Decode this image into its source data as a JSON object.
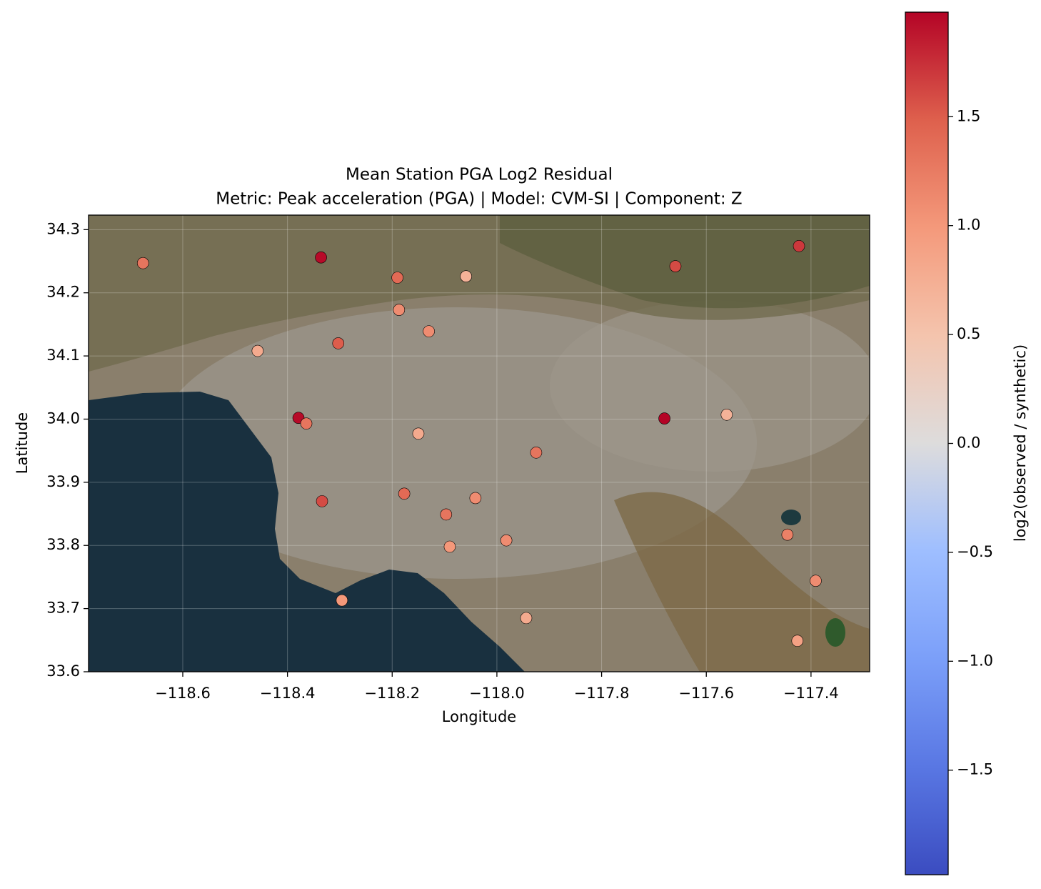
{
  "chart_data": {
    "type": "scatter",
    "title": "Mean Station PGA Log2 Residual",
    "subtitle": "Metric: Peak acceleration (PGA) | Model: CVM-SI | Component: Z",
    "x_label": "Longitude",
    "y_label": "Latitude",
    "x": [
      -118.676,
      -118.336,
      -118.19,
      -118.059,
      -117.659,
      -117.423,
      -118.187,
      -118.13,
      -118.303,
      -118.457,
      -118.379,
      -118.364,
      -118.15,
      -117.68,
      -117.561,
      -117.925,
      -118.334,
      -118.177,
      -118.041,
      -118.097,
      -117.982,
      -118.09,
      -117.445,
      -117.391,
      -118.296,
      -117.944,
      -117.426
    ],
    "y": [
      34.247,
      34.256,
      34.224,
      34.226,
      34.242,
      34.274,
      34.173,
      34.139,
      34.12,
      34.108,
      34.002,
      33.993,
      33.977,
      34.001,
      34.007,
      33.947,
      33.87,
      33.882,
      33.875,
      33.849,
      33.808,
      33.798,
      33.817,
      33.744,
      33.713,
      33.685,
      33.649
    ],
    "values": [
      1.3,
      1.95,
      1.4,
      0.7,
      1.6,
      1.7,
      1.1,
      1.1,
      1.5,
      0.8,
      1.95,
      1.3,
      0.8,
      1.98,
      0.7,
      1.3,
      1.6,
      1.4,
      1.1,
      1.3,
      1.1,
      1.0,
      1.2,
      1.1,
      1.0,
      0.8,
      0.9
    ],
    "xlim": [
      -118.78,
      -117.288
    ],
    "ylim": [
      33.6,
      34.323
    ],
    "xticks": [
      {
        "value": -118.6,
        "label": "−118.6"
      },
      {
        "value": -118.4,
        "label": "−118.4"
      },
      {
        "value": -118.2,
        "label": "−118.2"
      },
      {
        "value": -118.0,
        "label": "−118.0"
      },
      {
        "value": -117.8,
        "label": "−117.8"
      },
      {
        "value": -117.6,
        "label": "−117.6"
      },
      {
        "value": -117.4,
        "label": "−117.4"
      }
    ],
    "yticks": [
      33.6,
      33.7,
      33.8,
      33.9,
      {
        "value": 34.0,
        "label": "34.0"
      },
      34.1,
      34.2,
      34.3
    ],
    "grid": true,
    "colormap": "coolwarm",
    "clim": [
      -1.98,
      1.98
    ],
    "colorbar_label": "log2(observed / synthetic)",
    "cticks": [
      {
        "value": -1.5,
        "label": "−1.5"
      },
      {
        "value": -1.0,
        "label": "−1.0"
      },
      {
        "value": -0.5,
        "label": "−0.5"
      },
      {
        "value": 0,
        "label": "0.0"
      },
      0.5,
      {
        "value": 1.0,
        "label": "1.0"
      },
      1.5
    ]
  }
}
